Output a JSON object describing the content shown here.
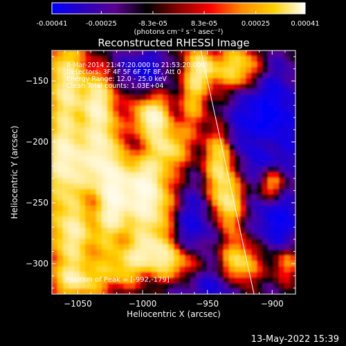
{
  "colorbar": {
    "tick_labels": [
      "-0.00041",
      "-0.00025",
      "-8.3e-05",
      "8.3e-05",
      "0.00025",
      "0.00041"
    ],
    "tick_values": [
      -0.00041,
      -0.00025,
      -8.3e-05,
      8.3e-05,
      0.00025,
      0.00041
    ],
    "range": [
      -0.00041,
      0.00041
    ],
    "unit_label": "(photons cm⁻² s⁻¹ asec⁻²)",
    "stops": [
      "#0000ff",
      "#2a00c0",
      "#5a0090",
      "#000000",
      "#8a0000",
      "#ff0000",
      "#ff8c00",
      "#ffd000",
      "#ffffff"
    ]
  },
  "title": "Reconstructed RHESSI Image",
  "annotations": {
    "time_range": "8-Mar-2014 21:47:20.000 to 21:53:20.000",
    "detectors": "Detectors: 3F 4F 5F 6F 7F 8F, Att 0",
    "energy_range": "Energy Range: 12.0 - 25.0 keV",
    "clean_counts": "Clean    Total counts: 1.03E+04",
    "peak_position": "Position of Peak = [-992,-179]"
  },
  "axes": {
    "xlabel": "Heliocentric X (arcsec)",
    "ylabel": "Heliocentric Y (arcsec)",
    "xlim": [
      -1070,
      -882
    ],
    "ylim": [
      -325,
      -125
    ],
    "x_ticks": [
      -1050,
      -1000,
      -950,
      -900
    ],
    "y_ticks": [
      -150,
      -200,
      -250,
      -300
    ],
    "x_tick_labels": [
      "−1050",
      "−1000",
      "−950",
      "−900"
    ],
    "y_tick_labels": [
      "−150",
      "−200",
      "−250",
      "−300"
    ]
  },
  "limb_line": {
    "from": [
      -955,
      -125
    ],
    "to": [
      -914,
      -325
    ]
  },
  "footer": {
    "date": "13-May-2022 15:39"
  }
}
